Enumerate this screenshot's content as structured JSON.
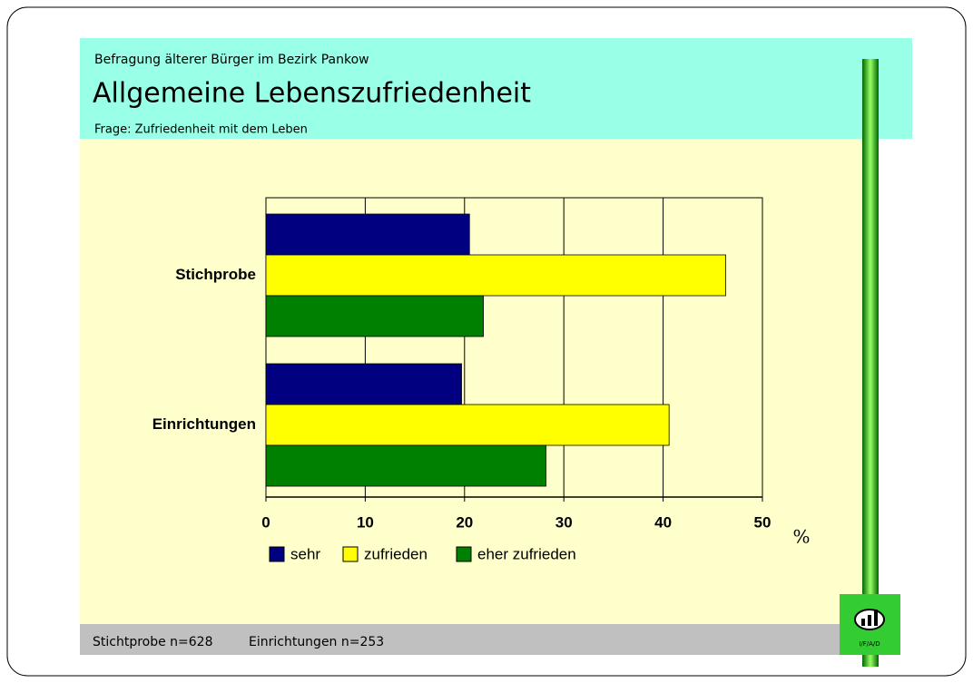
{
  "slide": {
    "header": "Befragung älterer Bürger im Bezirk Pankow",
    "footer": [
      "Stichtprobe n=628",
      "Einrichtungen n=253"
    ],
    "logo": "I/F/A/D"
  },
  "chart_data": {
    "type": "bar",
    "orientation": "horizontal",
    "title": "Allgemeine Lebenszufriedenheit",
    "subtitle": "Frage: Zufriedenheit mit dem Leben",
    "categories": [
      "Stichprobe",
      "Einrichtungen"
    ],
    "series": [
      {
        "name": "sehr",
        "color": "#000080",
        "values": [
          20.5,
          19.7
        ]
      },
      {
        "name": "zufrieden",
        "color": "#ffff00",
        "values": [
          46.3,
          40.6
        ]
      },
      {
        "name": "eher zufrieden",
        "color": "#008000",
        "values": [
          21.9,
          28.2
        ]
      }
    ],
    "xlim": [
      0,
      50
    ],
    "xticks": [
      0,
      10,
      20,
      30,
      40,
      50
    ],
    "x_label": "%",
    "grid": true,
    "legend": "bottom"
  }
}
